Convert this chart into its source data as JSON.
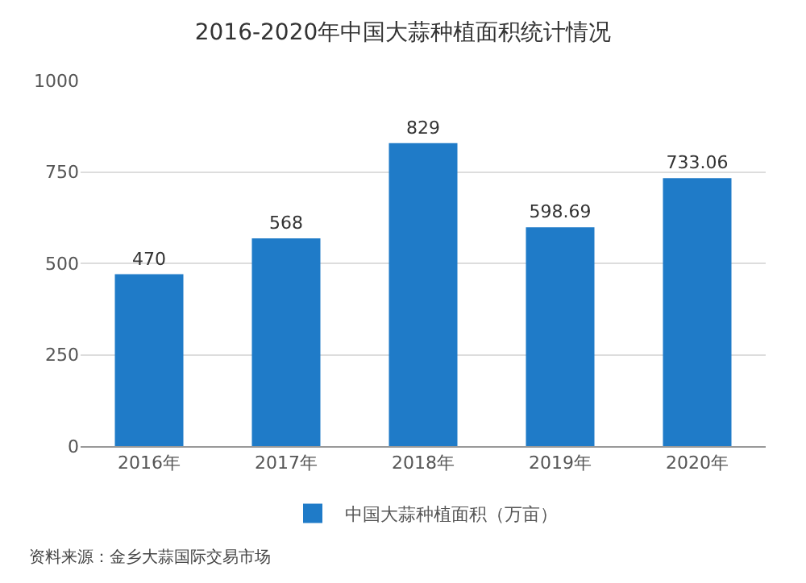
{
  "chart_data": {
    "type": "bar",
    "title": "2016-2020年中国大蒜种植面积统计情况",
    "categories": [
      "2016年",
      "2017年",
      "2018年",
      "2019年",
      "2020年"
    ],
    "series": [
      {
        "name": "中国大蒜种植面积（万亩）",
        "color": "#1f7bc8",
        "values": [
          470,
          568,
          829,
          598.69,
          733.06
        ]
      }
    ],
    "ylim": [
      0,
      1000
    ],
    "yticks": [
      0,
      250,
      500,
      750,
      1000
    ],
    "grid": "y",
    "legend": "bottom",
    "data_labels": true,
    "annotations": [
      "资料来源：金乡大蒜国际交易市场"
    ]
  }
}
